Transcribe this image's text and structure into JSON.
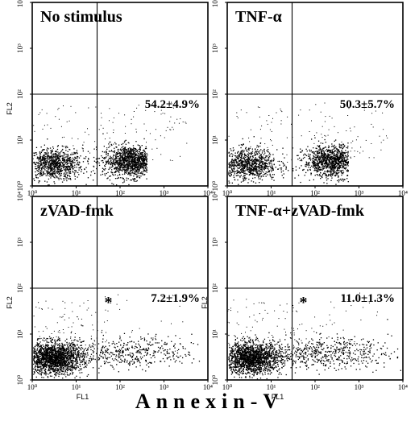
{
  "chart_data": [
    {
      "type": "scatter",
      "title": "No stimulus",
      "annotation": "54.2±4.9%",
      "asterisk": "",
      "xlabel": "",
      "ylabel": "FL2",
      "xscale": "log",
      "yscale": "log",
      "xlim": [
        1,
        10000
      ],
      "ylim": [
        1,
        10000
      ],
      "x_ticks": [
        "10⁰",
        "10¹",
        "10²",
        "10³",
        "10⁴"
      ],
      "y_ticks": [
        "10⁰",
        "10¹",
        "10²",
        "10³",
        "10⁴"
      ],
      "gate": {
        "x": 30,
        "y": 100
      },
      "clusters": [
        {
          "x": 3,
          "y": 3,
          "n": 900
        },
        {
          "x": 180,
          "y": 3.5,
          "n": 1300
        }
      ]
    },
    {
      "type": "scatter",
      "title": "TNF-α",
      "annotation": "50.3±5.7%",
      "asterisk": "",
      "xlabel": "",
      "ylabel": "",
      "xscale": "log",
      "yscale": "log",
      "xlim": [
        1,
        10000
      ],
      "ylim": [
        1,
        10000
      ],
      "x_ticks": [
        "10⁰",
        "10¹",
        "10²",
        "10³",
        "10⁴"
      ],
      "y_ticks": [
        "10⁰",
        "10¹",
        "10²",
        "10³",
        "10⁴"
      ],
      "gate": {
        "x": 30,
        "y": 100
      },
      "clusters": [
        {
          "x": 3,
          "y": 3,
          "n": 900
        },
        {
          "x": 250,
          "y": 3.5,
          "n": 1200
        }
      ]
    },
    {
      "type": "scatter",
      "title": "zVAD-fmk",
      "annotation": "7.2±1.9%",
      "asterisk": "*",
      "xlabel": "FL1",
      "ylabel": "FL2",
      "xscale": "log",
      "yscale": "log",
      "xlim": [
        1,
        10000
      ],
      "ylim": [
        1,
        10000
      ],
      "x_ticks": [
        "10⁰",
        "10¹",
        "10²",
        "10³",
        "10⁴"
      ],
      "y_ticks": [
        "10⁰",
        "10¹",
        "10²",
        "10³",
        "10⁴"
      ],
      "gate": {
        "x": 30,
        "y": 100
      },
      "clusters": [
        {
          "x": 3,
          "y": 3,
          "n": 1800
        },
        {
          "x": 150,
          "y": 4,
          "n": 450
        }
      ]
    },
    {
      "type": "scatter",
      "title": "TNF-α+zVAD-fmk",
      "annotation": "11.0±1.3%",
      "asterisk": "*",
      "xlabel": "FL1",
      "ylabel": "FL2",
      "xscale": "log",
      "yscale": "log",
      "xlim": [
        1,
        10000
      ],
      "ylim": [
        1,
        10000
      ],
      "x_ticks": [
        "10⁰",
        "10¹",
        "10²",
        "10³",
        "10⁴"
      ],
      "y_ticks": [
        "10⁰",
        "10¹",
        "10²",
        "10³",
        "10⁴"
      ],
      "gate": {
        "x": 30,
        "y": 100
      },
      "clusters": [
        {
          "x": 3.5,
          "y": 3,
          "n": 1700
        },
        {
          "x": 160,
          "y": 4,
          "n": 550
        }
      ]
    }
  ],
  "footer_label": "Annexin-V"
}
